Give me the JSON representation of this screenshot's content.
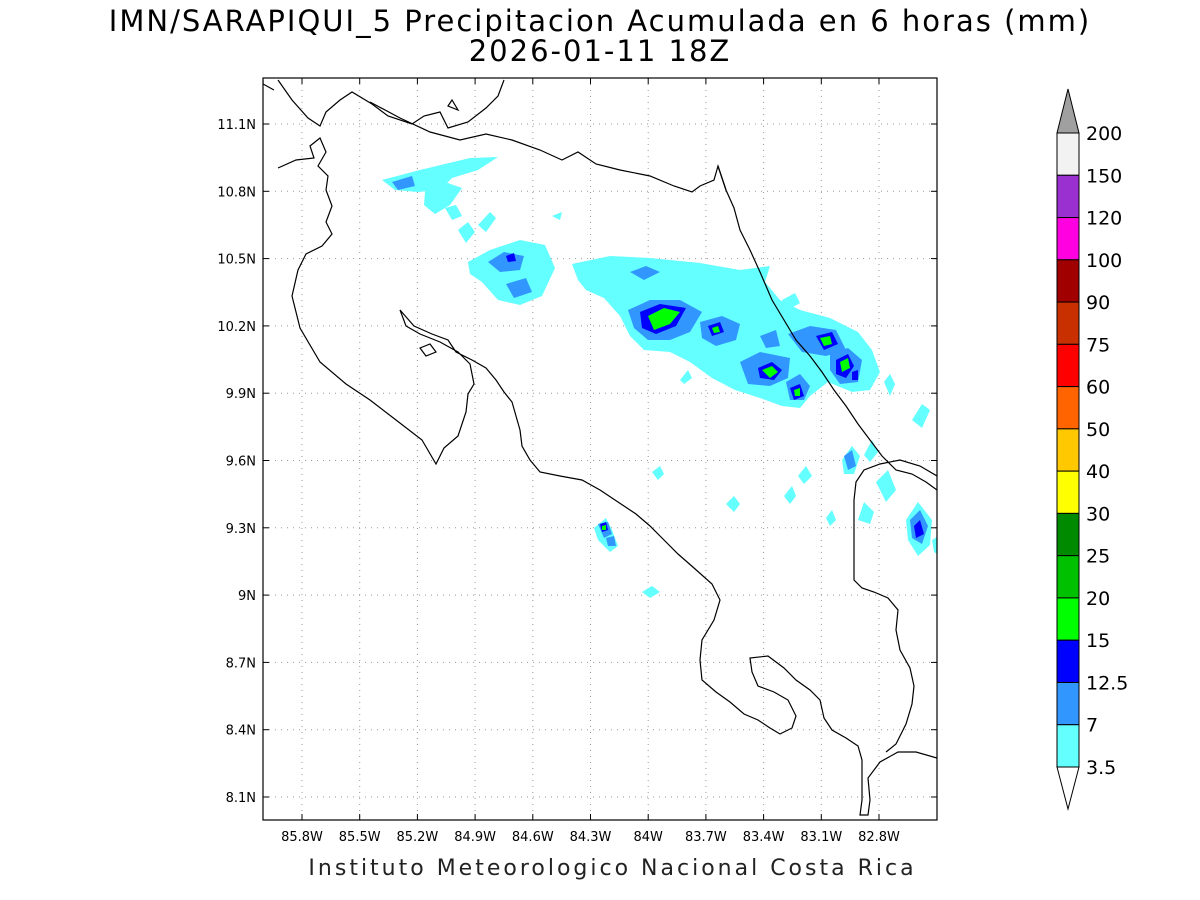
{
  "title": {
    "line1": "IMN/SARAPIQUI_5 Precipitacion Acumulada en 6 horas (mm)",
    "line2": "2026-01-11 18Z"
  },
  "footer": "Instituto Meteorologico Nacional Costa Rica",
  "axes": {
    "x_ticks": [
      "85.8W",
      "85.5W",
      "85.2W",
      "84.9W",
      "84.6W",
      "84.3W",
      "84W",
      "83.7W",
      "83.4W",
      "83.1W",
      "82.8W"
    ],
    "y_ticks": [
      "11.1N",
      "10.8N",
      "10.5N",
      "10.2N",
      "9.9N",
      "9.6N",
      "9.3N",
      "9N",
      "8.7N",
      "8.4N",
      "8.1N"
    ],
    "grid": "dotted"
  },
  "colorbar": {
    "labels": [
      "200",
      "150",
      "120",
      "100",
      "90",
      "75",
      "60",
      "50",
      "40",
      "30",
      "25",
      "20",
      "15",
      "12.5",
      "7",
      "3.5"
    ],
    "colors": [
      "#f2f2f2",
      "#9b30d0",
      "#ff00e0",
      "#a00000",
      "#c83000",
      "#ff0000",
      "#ff6400",
      "#ffc800",
      "#ffff00",
      "#008a00",
      "#00c000",
      "#00ff00",
      "#0000ff",
      "#3296ff",
      "#64ffff"
    ],
    "over_color": "#a0a0a0",
    "under_color": "#ffffff"
  }
}
